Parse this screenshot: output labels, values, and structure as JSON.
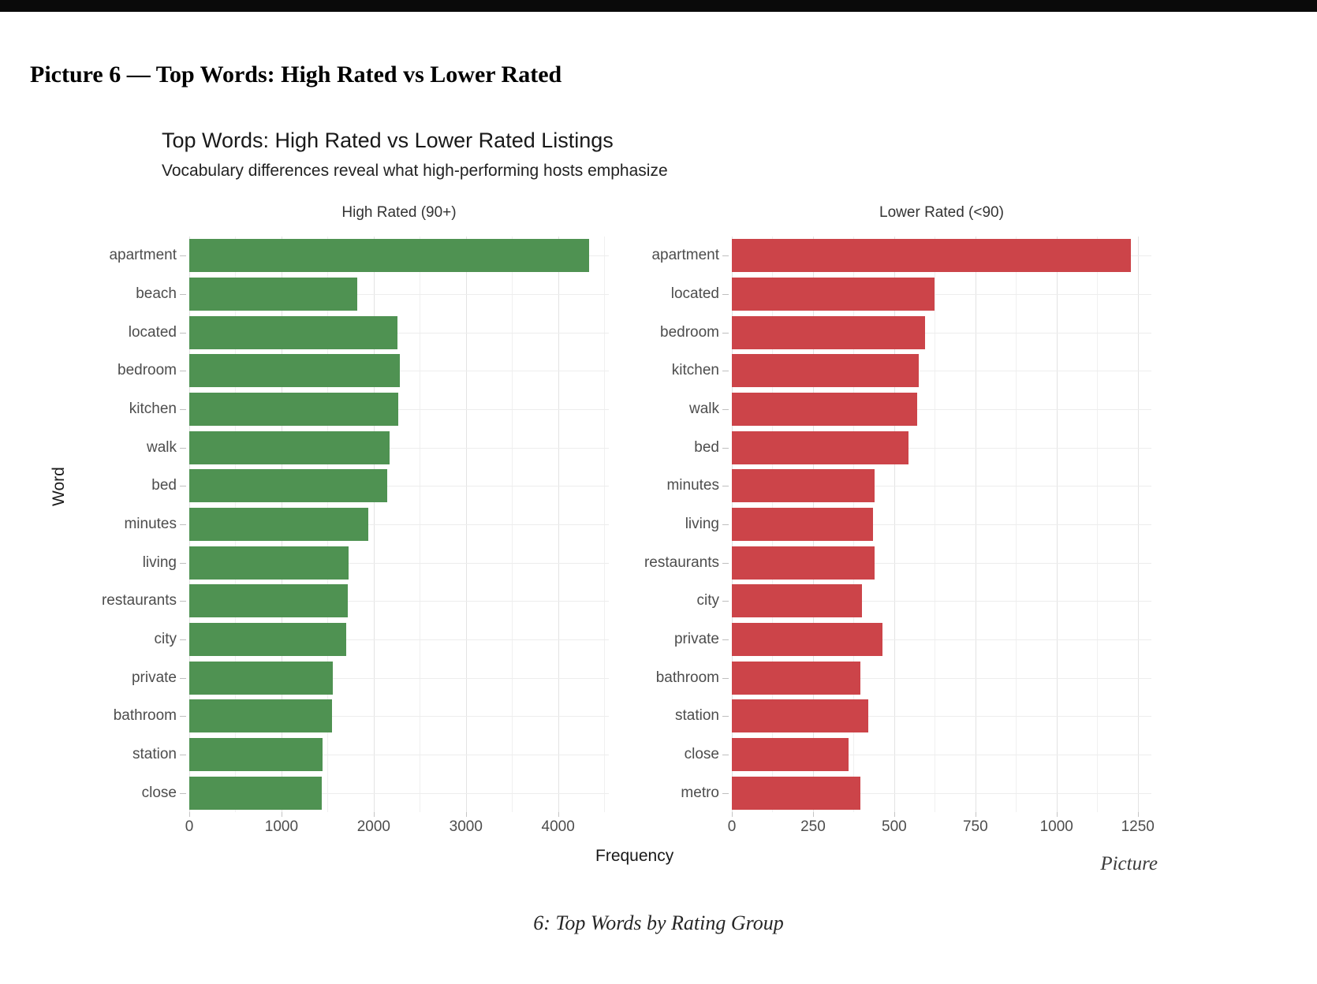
{
  "page": {
    "heading": "Picture 6 — Top Words: High Rated vs Lower Rated",
    "trailing_text": "Picture",
    "caption": "6: Top Words by Rating Group"
  },
  "chart_data": {
    "type": "bar",
    "orientation": "horizontal",
    "title": "Top Words: High Rated vs Lower Rated Listings",
    "subtitle": "Vocabulary differences reveal what high-performing hosts emphasize",
    "xlabel": "Frequency",
    "ylabel": "Word",
    "grid": "on",
    "facets": [
      {
        "label": "High Rated (90+)",
        "bar_color": "#4F9252",
        "xlim": [
          0,
          4550
        ],
        "x_major_ticks": [
          0,
          1000,
          2000,
          3000,
          4000
        ],
        "x_minor_ticks": [
          500,
          1500,
          2500,
          3500,
          4500
        ],
        "categories": [
          "apartment",
          "beach",
          "located",
          "bedroom",
          "kitchen",
          "walk",
          "bed",
          "minutes",
          "living",
          "restaurants",
          "city",
          "private",
          "bathroom",
          "station",
          "close"
        ],
        "values": [
          4340,
          1820,
          2255,
          2280,
          2270,
          2170,
          2150,
          1940,
          1725,
          1715,
          1705,
          1560,
          1545,
          1445,
          1440
        ]
      },
      {
        "label": "Lower Rated (<90)",
        "bar_color": "#CC4449",
        "xlim": [
          0,
          1292
        ],
        "x_major_ticks": [
          0,
          250,
          500,
          750,
          1000,
          1250
        ],
        "x_minor_ticks": [
          125,
          375,
          625,
          875,
          1125
        ],
        "categories": [
          "apartment",
          "located",
          "bedroom",
          "kitchen",
          "walk",
          "bed",
          "minutes",
          "living",
          "restaurants",
          "city",
          "private",
          "bathroom",
          "station",
          "close",
          "metro"
        ],
        "values": [
          1230,
          625,
          595,
          575,
          570,
          545,
          440,
          435,
          440,
          400,
          465,
          395,
          420,
          360,
          395
        ]
      }
    ]
  }
}
